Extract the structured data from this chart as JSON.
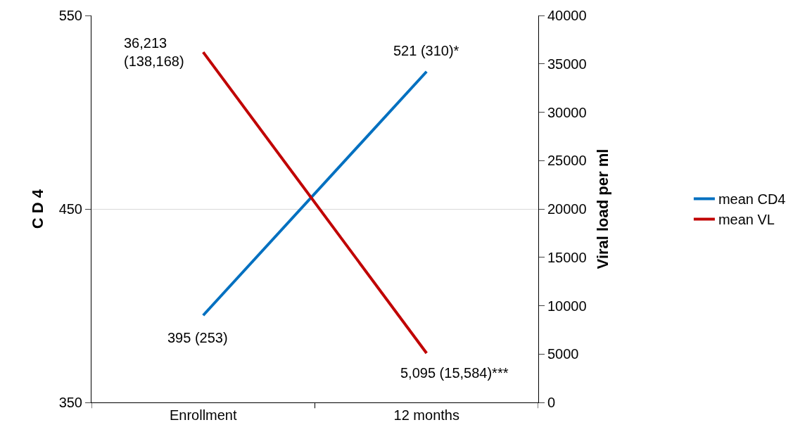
{
  "chart_data": {
    "type": "line",
    "categories": [
      "Enrollment",
      "12 months"
    ],
    "ylabel": "C D 4",
    "y2label": "Viral load per ml",
    "ylim": [
      350,
      550
    ],
    "yticks": [
      350,
      450,
      550
    ],
    "y2lim": [
      0,
      40000
    ],
    "y2ticks": [
      0,
      5000,
      10000,
      15000,
      20000,
      25000,
      30000,
      35000,
      40000
    ],
    "grid": "y",
    "legend": "right",
    "marker": "none",
    "line_style": "solid",
    "series": [
      {
        "name": "mean CD4",
        "color": "#0070c0",
        "values": [
          395,
          521
        ],
        "value_labels": [
          "395 (253)",
          "521 (310)*"
        ]
      },
      {
        "name": "mean VL",
        "color": "#c00000",
        "axis": "y2",
        "values": [
          36213,
          5095
        ],
        "value_labels": [
          "36,213\n(138,168)",
          "5,095 (15,584)***"
        ]
      }
    ]
  }
}
